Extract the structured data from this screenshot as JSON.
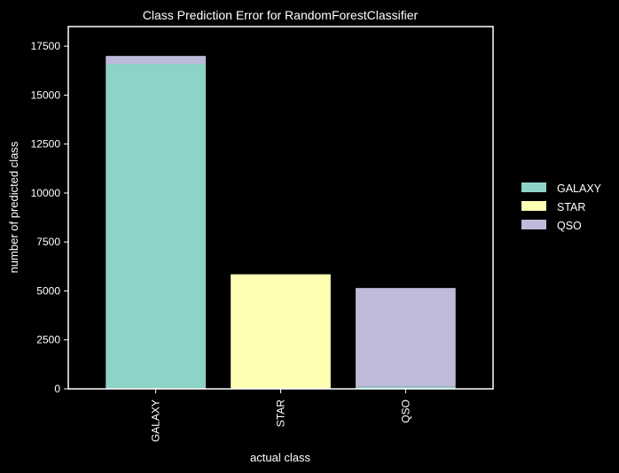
{
  "chart_data": {
    "type": "bar",
    "stacked": true,
    "title": "Class Prediction Error for RandomForestClassifier",
    "xlabel": "actual class",
    "ylabel": "number of predicted class",
    "categories": [
      "GALAXY",
      "STAR",
      "QSO"
    ],
    "series": [
      {
        "name": "GALAXY",
        "color": "#8dd3c7",
        "values": [
          16600,
          0,
          100
        ]
      },
      {
        "name": "STAR",
        "color": "#ffffb3",
        "values": [
          0,
          5850,
          0
        ]
      },
      {
        "name": "QSO",
        "color": "#bebada",
        "values": [
          400,
          0,
          5050
        ]
      }
    ],
    "ylim": [
      0,
      18500
    ],
    "yticks": [
      "0",
      "2500",
      "5000",
      "7500",
      "10000",
      "12500",
      "15000",
      "17500"
    ],
    "grid": false,
    "legend_position": "right"
  }
}
